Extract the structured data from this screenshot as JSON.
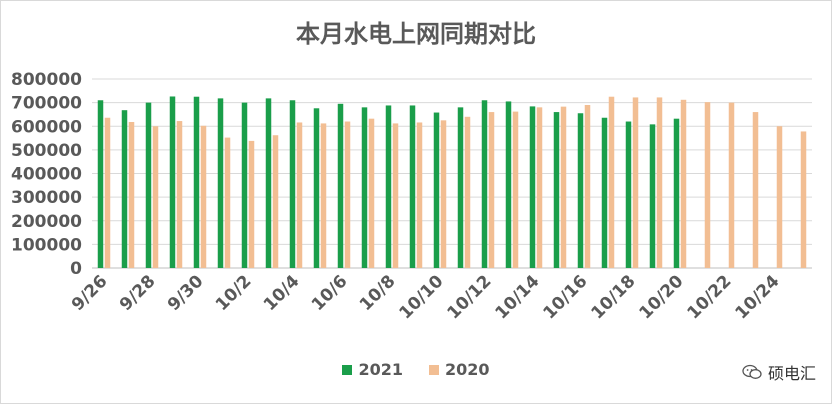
{
  "chart_data": {
    "type": "bar",
    "title": "本月水电上网同期对比",
    "xlabel": "",
    "ylabel": "",
    "ylim": [
      0,
      800000
    ],
    "yticks": [
      0,
      100000,
      200000,
      300000,
      400000,
      500000,
      600000,
      700000,
      800000
    ],
    "grid": true,
    "legend_position": "bottom",
    "categories": [
      "9/26",
      "9/27",
      "9/28",
      "9/29",
      "9/30",
      "10/1",
      "10/2",
      "10/3",
      "10/4",
      "10/5",
      "10/6",
      "10/7",
      "10/8",
      "10/9",
      "10/10",
      "10/11",
      "10/12",
      "10/13",
      "10/14",
      "10/15",
      "10/16",
      "10/17",
      "10/18",
      "10/19",
      "10/20",
      "10/21",
      "10/22",
      "10/23",
      "10/24",
      "10/25"
    ],
    "tick_labels": [
      "9/26",
      "",
      "9/28",
      "",
      "9/30",
      "",
      "10/2",
      "",
      "10/4",
      "",
      "10/6",
      "",
      "10/8",
      "",
      "10/10",
      "",
      "10/12",
      "",
      "10/14",
      "",
      "10/16",
      "",
      "10/18",
      "",
      "10/20",
      "",
      "10/22",
      "",
      "10/24",
      ""
    ],
    "series": [
      {
        "name": "2021",
        "color": "#1a9e4a",
        "values": [
          710000,
          668000,
          700000,
          726000,
          725000,
          718000,
          700000,
          718000,
          710000,
          676000,
          695000,
          680000,
          688000,
          688000,
          658000,
          680000,
          710000,
          705000,
          684000,
          660000,
          655000,
          636000,
          620000,
          608000,
          632000,
          null,
          null,
          null,
          null,
          null
        ]
      },
      {
        "name": "2020",
        "color": "#f2be93",
        "values": [
          636000,
          618000,
          600000,
          622000,
          602000,
          552000,
          538000,
          562000,
          616000,
          612000,
          620000,
          632000,
          612000,
          616000,
          625000,
          640000,
          660000,
          662000,
          680000,
          683000,
          690000,
          725000,
          722000,
          722000,
          712000,
          702000,
          700000,
          660000,
          600000,
          578000
        ]
      }
    ]
  },
  "watermark": {
    "text": "硕电汇",
    "icon": "wechat-icon"
  }
}
